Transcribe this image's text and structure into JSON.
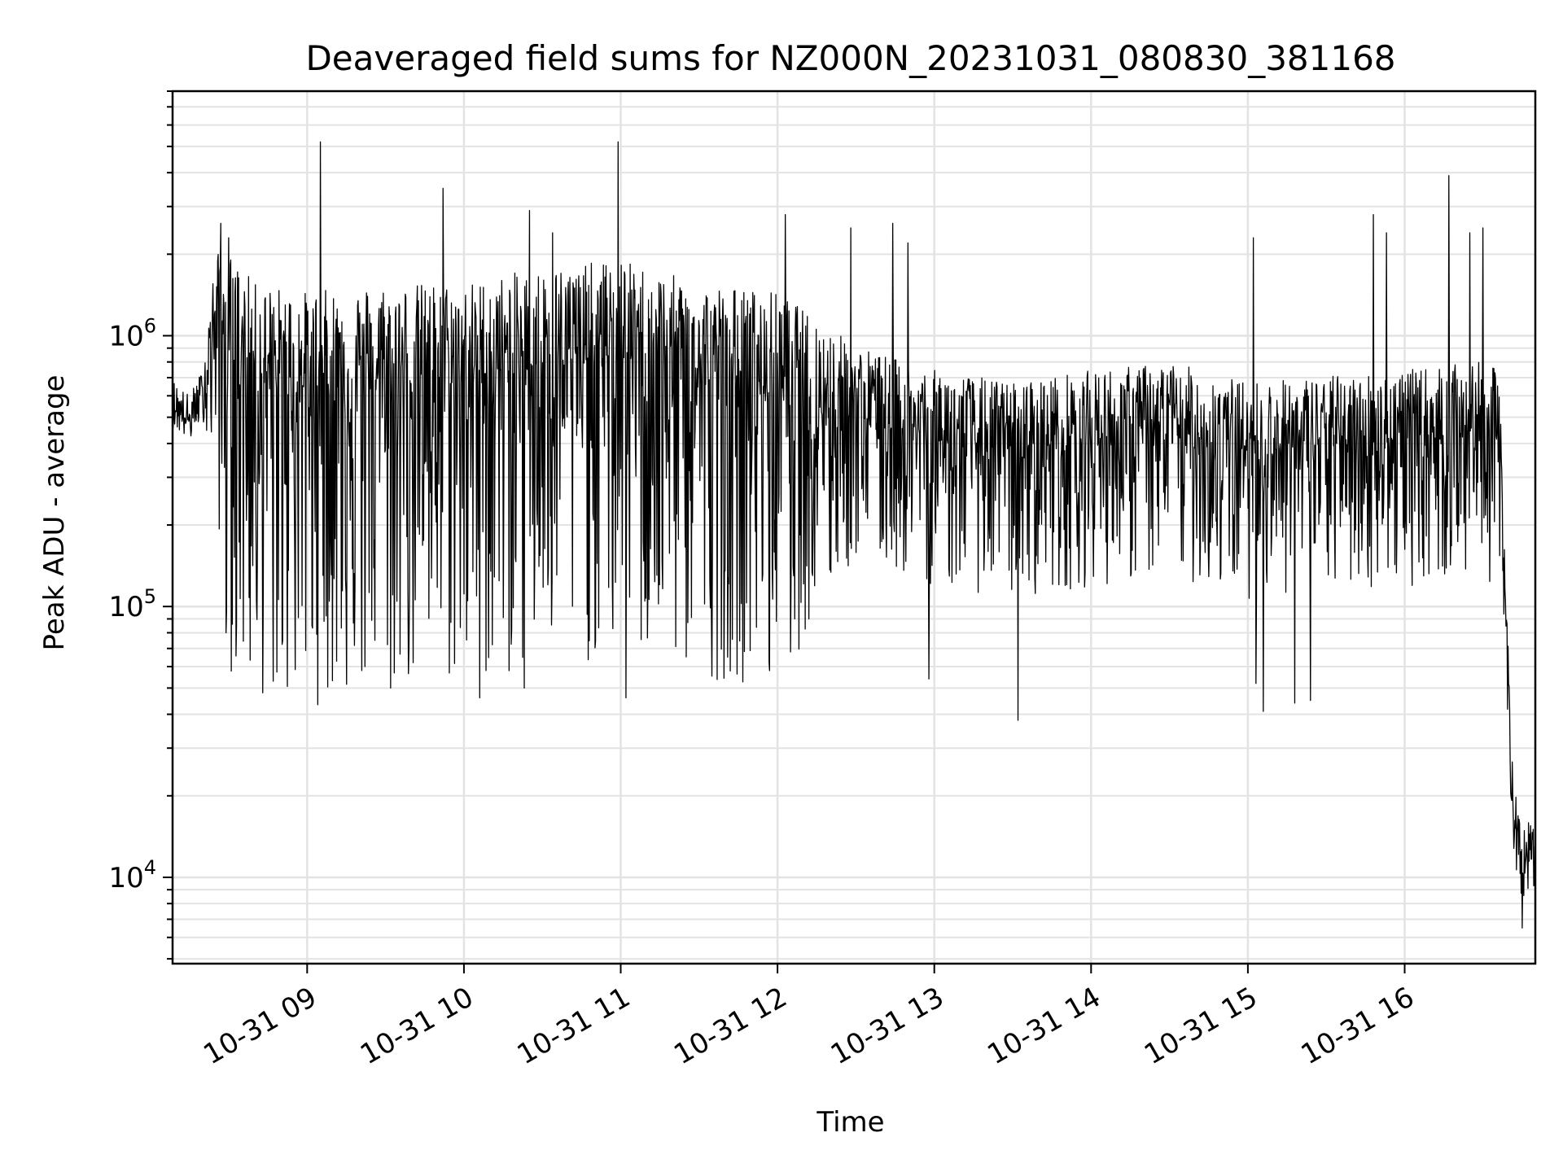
{
  "chart_data": {
    "type": "line",
    "title": "Deaveraged field sums for NZ000N_20231031_080830_381168",
    "xlabel": "Time",
    "ylabel": "Peak ADU - average",
    "y_scale": "log",
    "ylim": [
      4800,
      8000000
    ],
    "xlim": [
      "2023-10-31 08:08:30",
      "2023-10-31 16:50:00"
    ],
    "grid": true,
    "x_ticks": [
      {
        "t": "2023-10-31 09:00",
        "label": "10-31 09"
      },
      {
        "t": "2023-10-31 10:00",
        "label": "10-31 10"
      },
      {
        "t": "2023-10-31 11:00",
        "label": "10-31 11"
      },
      {
        "t": "2023-10-31 12:00",
        "label": "10-31 12"
      },
      {
        "t": "2023-10-31 13:00",
        "label": "10-31 13"
      },
      {
        "t": "2023-10-31 14:00",
        "label": "10-31 14"
      },
      {
        "t": "2023-10-31 15:00",
        "label": "10-31 15"
      },
      {
        "t": "2023-10-31 16:00",
        "label": "10-31 16"
      }
    ],
    "y_ticks": [
      {
        "value": 10000,
        "base": "10",
        "exp": "4"
      },
      {
        "value": 100000,
        "base": "10",
        "exp": "5"
      },
      {
        "value": 1000000,
        "base": "10",
        "exp": "6"
      }
    ],
    "series_color": "#000000",
    "series": [
      {
        "points": [
          [
            "2023-10-31 08:08:30",
            550000
          ],
          [
            "2023-10-31 08:15",
            480000
          ],
          [
            "2023-10-31 08:20",
            600000
          ],
          [
            "2023-10-31 08:25",
            1200000
          ],
          [
            "2023-10-31 08:30",
            900000
          ],
          [
            "2023-10-31 08:40",
            700000
          ],
          [
            "2023-10-31 09:00",
            650000
          ],
          [
            "2023-10-31 09:30",
            700000
          ],
          [
            "2023-10-31 10:00",
            700000
          ],
          [
            "2023-10-31 10:30",
            800000
          ],
          [
            "2023-10-31 11:00",
            850000
          ],
          [
            "2023-10-31 11:30",
            700000
          ],
          [
            "2023-10-31 12:00",
            650000
          ],
          [
            "2023-10-31 12:30",
            520000
          ],
          [
            "2023-10-31 13:00",
            420000
          ],
          [
            "2023-10-31 13:30",
            380000
          ],
          [
            "2023-10-31 14:00",
            420000
          ],
          [
            "2023-10-31 14:30",
            450000
          ],
          [
            "2023-10-31 15:00",
            380000
          ],
          [
            "2023-10-31 15:30",
            400000
          ],
          [
            "2023-10-31 16:00",
            420000
          ],
          [
            "2023-10-31 16:30",
            450000
          ],
          [
            "2023-10-31 16:36",
            420000
          ],
          [
            "2023-10-31 16:38",
            150000
          ],
          [
            "2023-10-31 16:40",
            40000
          ],
          [
            "2023-10-31 16:42",
            15000
          ],
          [
            "2023-10-31 16:45",
            11000
          ],
          [
            "2023-10-31 16:50",
            12000
          ]
        ],
        "noise_profile": [
          [
            "2023-10-31 08:08:30",
            0.1,
            0.08
          ],
          [
            "2023-10-31 08:20",
            0.1,
            0.08
          ],
          [
            "2023-10-31 08:30",
            0.35,
            1.2
          ],
          [
            "2023-10-31 12:00",
            0.35,
            1.1
          ],
          [
            "2023-10-31 12:30",
            0.25,
            0.55
          ],
          [
            "2023-10-31 16:36",
            0.25,
            0.55
          ],
          [
            "2023-10-31 16:42",
            0.15,
            0.12
          ],
          [
            "2023-10-31 16:50",
            0.15,
            0.12
          ]
        ],
        "spikes": [
          [
            "2023-10-31 08:27",
            2600000
          ],
          [
            "2023-10-31 08:30",
            2300000
          ],
          [
            "2023-10-31 09:05",
            5200000
          ],
          [
            "2023-10-31 09:52",
            3500000
          ],
          [
            "2023-10-31 10:25",
            2900000
          ],
          [
            "2023-10-31 10:34",
            2400000
          ],
          [
            "2023-10-31 10:59",
            5200000
          ],
          [
            "2023-10-31 12:03",
            2800000
          ],
          [
            "2023-10-31 12:28",
            2500000
          ],
          [
            "2023-10-31 12:44",
            2600000
          ],
          [
            "2023-10-31 12:50",
            2200000
          ],
          [
            "2023-10-31 15:02",
            2300000
          ],
          [
            "2023-10-31 15:48",
            2800000
          ],
          [
            "2023-10-31 15:53",
            2400000
          ],
          [
            "2023-10-31 16:17",
            3900000
          ],
          [
            "2023-10-31 16:25",
            2400000
          ],
          [
            "2023-10-31 16:30",
            2500000
          ]
        ],
        "dips": [
          [
            "2023-10-31 08:29",
            80000
          ],
          [
            "2023-10-31 08:47",
            53000
          ],
          [
            "2023-10-31 09:21",
            58000
          ],
          [
            "2023-10-31 09:32",
            50000
          ],
          [
            "2023-10-31 10:06",
            46000
          ],
          [
            "2023-10-31 10:23",
            50000
          ],
          [
            "2023-10-31 11:02",
            46000
          ],
          [
            "2023-10-31 11:57",
            58000
          ],
          [
            "2023-10-31 12:12",
            90000
          ],
          [
            "2023-10-31 12:58",
            54000
          ],
          [
            "2023-10-31 13:32",
            38000
          ],
          [
            "2023-10-31 15:03",
            52000
          ],
          [
            "2023-10-31 15:06",
            41000
          ],
          [
            "2023-10-31 15:18",
            44000
          ],
          [
            "2023-10-31 15:24",
            45000
          ],
          [
            "2023-10-31 16:45",
            6500
          ]
        ]
      }
    ]
  }
}
